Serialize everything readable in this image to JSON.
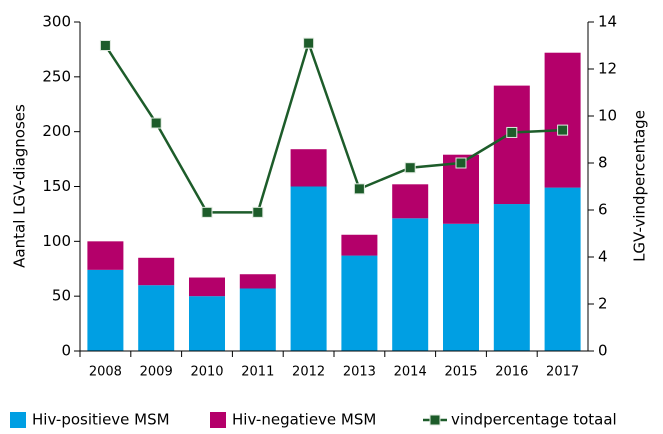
{
  "chart_data": {
    "type": "bar-line",
    "categories": [
      "2008",
      "2009",
      "2010",
      "2011",
      "2012",
      "2013",
      "2014",
      "2015",
      "2016",
      "2017"
    ],
    "ylabel": "Aantal LGV-diagnoses",
    "y2label": "LGV-vindpercentage",
    "ylim": [
      0,
      300
    ],
    "yticks": [
      0,
      50,
      100,
      150,
      200,
      250,
      300
    ],
    "y2lim": [
      0,
      14
    ],
    "y2ticks": [
      0,
      2,
      4,
      6,
      8,
      10,
      12,
      14
    ],
    "stacked": true,
    "series": [
      {
        "name": "Hiv-positieve MSM",
        "color": "#009fe3",
        "type": "bar",
        "values": [
          74,
          60,
          50,
          57,
          150,
          87,
          121,
          116,
          134,
          149
        ]
      },
      {
        "name": "Hiv-negatieve MSM",
        "color": "#b4006a",
        "type": "bar",
        "values": [
          26,
          25,
          17,
          13,
          34,
          19,
          31,
          63,
          108,
          123
        ]
      },
      {
        "name": "vindpercentage totaal",
        "color": "#1d5c2a",
        "type": "line",
        "axis": "y2",
        "values": [
          13.0,
          9.7,
          5.9,
          5.9,
          13.1,
          6.9,
          7.8,
          8.0,
          9.3,
          9.4
        ]
      }
    ]
  }
}
